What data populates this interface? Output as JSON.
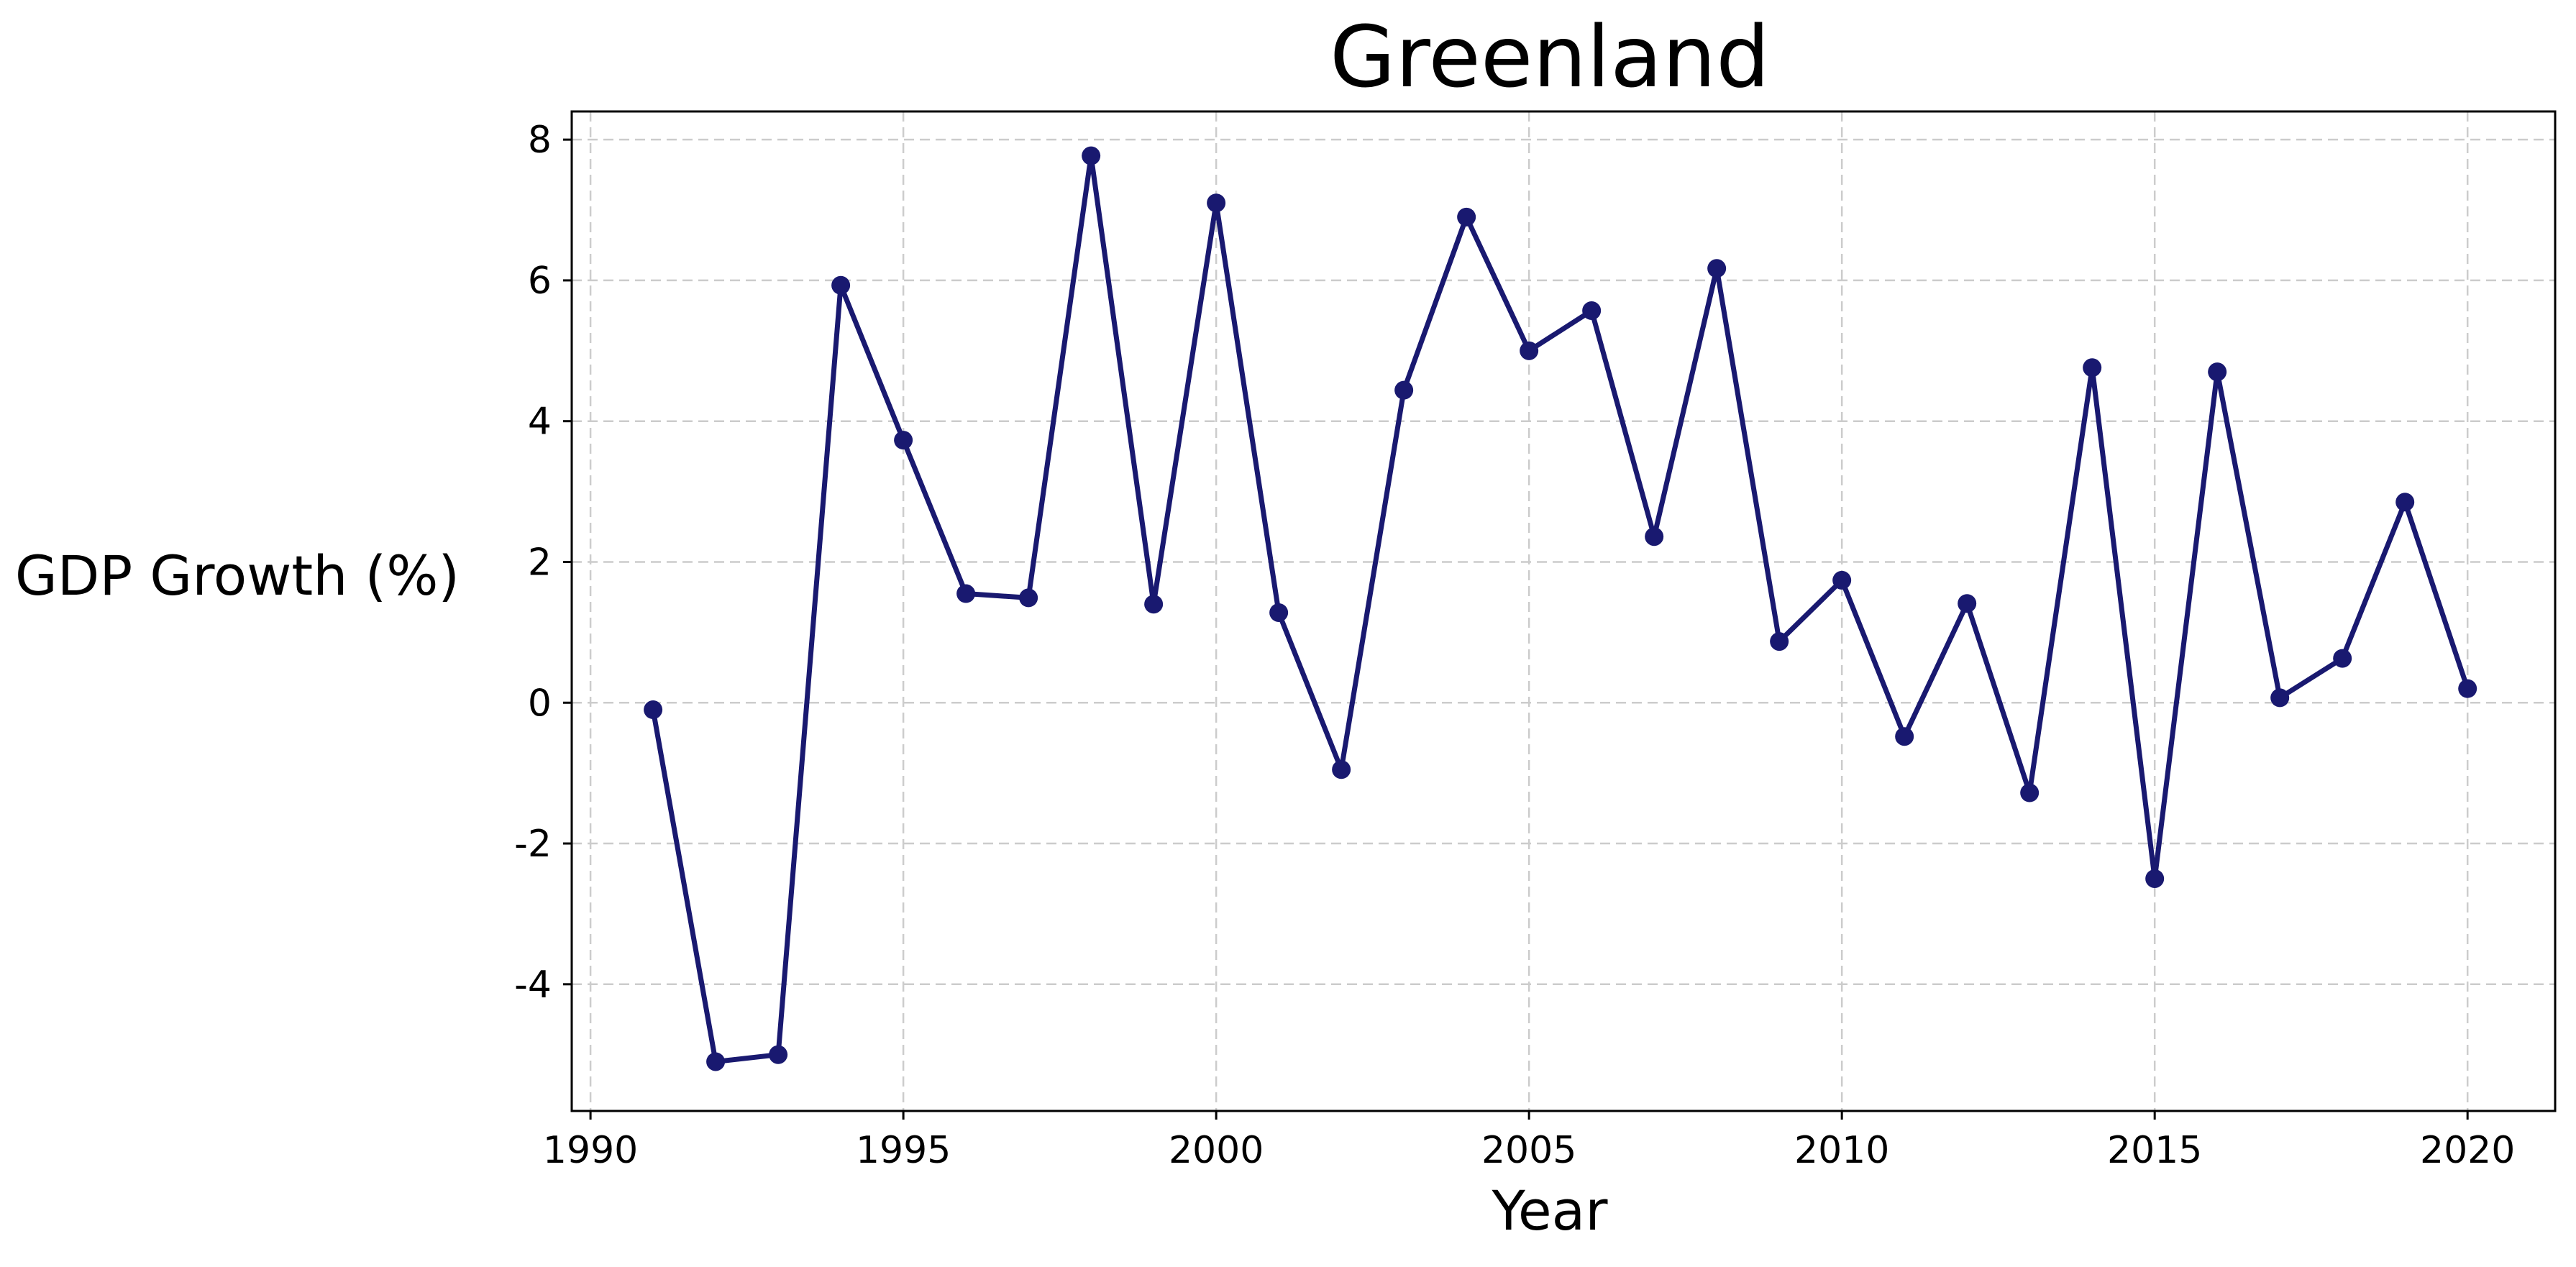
{
  "chart_data": {
    "type": "line",
    "title": "Greenland",
    "xlabel": "Year",
    "ylabel": "GDP Growth (%)",
    "xlim": [
      1989.7,
      2021.4
    ],
    "ylim": [
      -5.8,
      8.4
    ],
    "xticks": [
      1990,
      1995,
      2000,
      2005,
      2010,
      2015,
      2020
    ],
    "yticks": [
      -4,
      -2,
      0,
      2,
      4,
      6,
      8
    ],
    "grid": true,
    "legend": "none",
    "color": "#191970",
    "series": [
      {
        "x": [
          1991,
          1992,
          1993,
          1994,
          1995,
          1996,
          1997,
          1998,
          1999,
          2000,
          2001,
          2002,
          2003,
          2004,
          2005,
          2006,
          2007,
          2008,
          2009,
          2010,
          2011,
          2012,
          2013,
          2014,
          2015,
          2016,
          2017,
          2018,
          2019,
          2020
        ],
        "values": [
          -0.1,
          -5.1,
          -5.0,
          5.93,
          3.73,
          1.55,
          1.49,
          7.77,
          1.4,
          7.1,
          1.28,
          -0.95,
          4.44,
          6.9,
          5.0,
          5.57,
          2.36,
          6.17,
          0.87,
          1.74,
          -0.48,
          1.41,
          -1.28,
          4.76,
          -2.5,
          4.7,
          0.07,
          0.63,
          2.85,
          0.2
        ]
      }
    ]
  }
}
